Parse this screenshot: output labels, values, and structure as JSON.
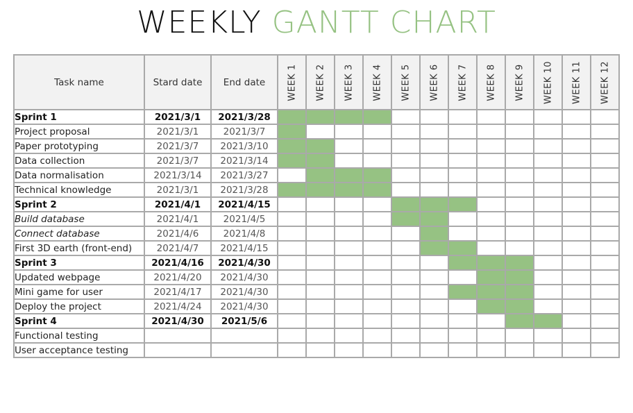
{
  "title": {
    "part1": "WEEKLY",
    "part2": "GANTT CHART"
  },
  "colors": {
    "bar": "#96c283",
    "title_accent": "#96c283",
    "grid": "#a9a9a9",
    "header_bg": "#f2f2f2"
  },
  "headers": {
    "task": "Task name",
    "start": "Stard date",
    "end": "End date"
  },
  "weeks": [
    "WEEK 1",
    "WEEK 2",
    "WEEK 3",
    "WEEK 4",
    "WEEK 5",
    "WEEK 6",
    "WEEK 7",
    "WEEK 8",
    "WEEK 9",
    "WEEK 10",
    "WEEK 11",
    "WEEK 12"
  ],
  "chart_data": {
    "type": "gantt",
    "title": "WEEKLY GANTT CHART",
    "columns": [
      "Task name",
      "Stard date",
      "End date"
    ],
    "tasks": [
      {
        "name": "Sprint 1",
        "start": "2021/3/1",
        "end": "2021/3/28",
        "weeks": [
          1,
          4
        ],
        "sprint": true
      },
      {
        "name": "Project proposal",
        "start": "2021/3/1",
        "end": "2021/3/7",
        "weeks": [
          1,
          1
        ]
      },
      {
        "name": "Paper prototyping",
        "start": "2021/3/7",
        "end": "2021/3/10",
        "weeks": [
          1,
          2
        ]
      },
      {
        "name": "Data collection",
        "start": "2021/3/7",
        "end": "2021/3/14",
        "weeks": [
          1,
          2
        ]
      },
      {
        "name": "Data normalisation",
        "start": "2021/3/14",
        "end": "2021/3/27",
        "weeks": [
          2,
          4
        ]
      },
      {
        "name": "Technical knowledge",
        "start": "2021/3/1",
        "end": "2021/3/28",
        "weeks": [
          1,
          4
        ]
      },
      {
        "name": "Sprint 2",
        "start": "2021/4/1",
        "end": "2021/4/15",
        "weeks": [
          5,
          7
        ],
        "sprint": true
      },
      {
        "name": "Build database",
        "start": "2021/4/1",
        "end": "2021/4/5",
        "weeks": [
          5,
          6
        ],
        "italic": true
      },
      {
        "name": "Connect database",
        "start": "2021/4/6",
        "end": "2021/4/8",
        "weeks": [
          6,
          6
        ],
        "italic": true
      },
      {
        "name": "First 3D earth (front-end)",
        "start": "2021/4/7",
        "end": "2021/4/15",
        "weeks": [
          6,
          7
        ]
      },
      {
        "name": "Sprint 3",
        "start": "2021/4/16",
        "end": "2021/4/30",
        "weeks": [
          7,
          9
        ],
        "sprint": true
      },
      {
        "name": "Updated webpage",
        "start": "2021/4/20",
        "end": "2021/4/30",
        "weeks": [
          8,
          9
        ]
      },
      {
        "name": "Mini game for user",
        "start": "2021/4/17",
        "end": "2021/4/30",
        "weeks": [
          7,
          9
        ]
      },
      {
        "name": "Deploy the project",
        "start": "2021/4/24",
        "end": "2021/4/30",
        "weeks": [
          8,
          9
        ]
      },
      {
        "name": "Sprint 4",
        "start": "2021/4/30",
        "end": "2021/5/6",
        "weeks": [
          9,
          10
        ],
        "sprint": true
      },
      {
        "name": "Functional testing",
        "start": "",
        "end": "",
        "weeks": null
      },
      {
        "name": "User acceptance testing",
        "start": "",
        "end": "",
        "weeks": null
      }
    ]
  }
}
